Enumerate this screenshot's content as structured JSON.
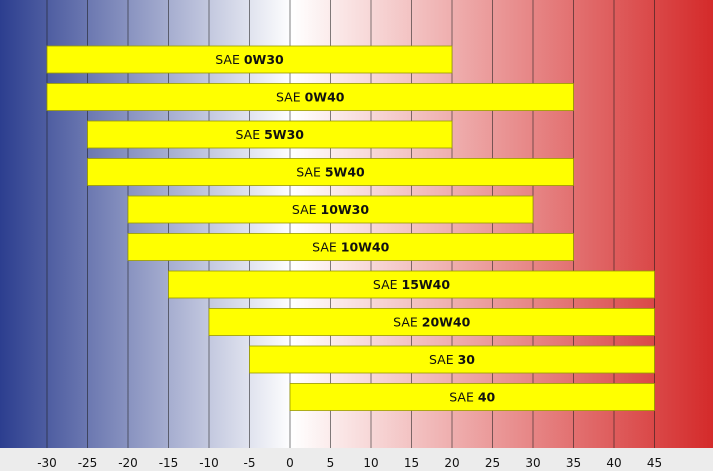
{
  "chart_data": {
    "type": "bar",
    "orientation": "horizontal-range",
    "title": "",
    "xlabel": "",
    "ylabel": "",
    "xlim": [
      -35,
      50
    ],
    "x_ticks": [
      -30,
      -25,
      -20,
      -15,
      -10,
      -5,
      0,
      5,
      10,
      15,
      20,
      25,
      30,
      35,
      40,
      45
    ],
    "grid": true,
    "bar_color": "#ffff00",
    "bar_border_color": "#999900",
    "background_gradient": [
      "#2c3e8f",
      "#ffffff",
      "#d42a2a"
    ],
    "bars": [
      {
        "prefix": "SAE ",
        "grade": "0W30",
        "min": -30,
        "max": 20
      },
      {
        "prefix": "SAE ",
        "grade": "0W40",
        "min": -30,
        "max": 35
      },
      {
        "prefix": "SAE ",
        "grade": "5W30",
        "min": -25,
        "max": 20
      },
      {
        "prefix": "SAE ",
        "grade": "5W40",
        "min": -25,
        "max": 35
      },
      {
        "prefix": "SAE ",
        "grade": "10W30",
        "min": -20,
        "max": 30
      },
      {
        "prefix": "SAE ",
        "grade": "10W40",
        "min": -20,
        "max": 35
      },
      {
        "prefix": "SAE ",
        "grade": "15W40",
        "min": -15,
        "max": 45
      },
      {
        "prefix": "SAE ",
        "grade": "20W40",
        "min": -10,
        "max": 45
      },
      {
        "prefix": "SAE ",
        "grade": "30",
        "min": -5,
        "max": 45
      },
      {
        "prefix": "SAE ",
        "grade": "40",
        "min": 0,
        "max": 45
      }
    ]
  }
}
